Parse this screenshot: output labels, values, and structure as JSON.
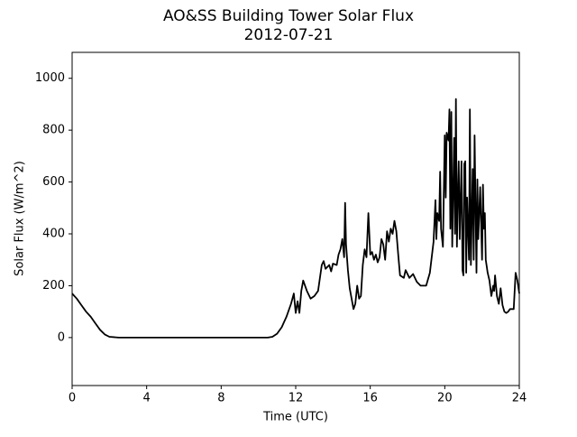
{
  "chart_data": {
    "type": "line",
    "title": "AO&SS Building Tower Solar Flux",
    "subtitle": "2012-07-21",
    "x_label": "Time (UTC)",
    "y_label": "Solar Flux (W/m^2)",
    "xlim": [
      0,
      24
    ],
    "ylim": [
      -185,
      1100
    ],
    "xticks": [
      0,
      4,
      8,
      12,
      16,
      20,
      24
    ],
    "yticks": [
      0,
      200,
      400,
      600,
      800,
      1000
    ],
    "grid": false,
    "series": [
      {
        "color": "#000000",
        "x": [
          0,
          0.25,
          0.5,
          0.75,
          1,
          1.25,
          1.5,
          1.75,
          2,
          2.5,
          3,
          4,
          5,
          6,
          7,
          8,
          9,
          10,
          10.5,
          10.75,
          11,
          11.25,
          11.5,
          11.75,
          11.9,
          12,
          12.1,
          12.2,
          12.3,
          12.4,
          12.6,
          12.8,
          13,
          13.2,
          13.4,
          13.5,
          13.6,
          13.8,
          13.9,
          14,
          14.2,
          14.3,
          14.4,
          14.5,
          14.6,
          14.65,
          14.7,
          14.8,
          14.9,
          15,
          15.1,
          15.2,
          15.3,
          15.4,
          15.5,
          15.6,
          15.7,
          15.8,
          15.9,
          16,
          16.1,
          16.2,
          16.3,
          16.4,
          16.5,
          16.6,
          16.7,
          16.8,
          16.9,
          17,
          17.1,
          17.2,
          17.3,
          17.4,
          17.5,
          17.6,
          17.8,
          17.9,
          18.1,
          18.3,
          18.5,
          18.7,
          19,
          19.2,
          19.4,
          19.5,
          19.55,
          19.6,
          19.7,
          19.75,
          19.8,
          19.9,
          20,
          20.05,
          20.1,
          20.2,
          20.25,
          20.3,
          20.35,
          20.4,
          20.5,
          20.55,
          20.6,
          20.65,
          20.7,
          20.75,
          20.8,
          20.9,
          20.95,
          21,
          21.05,
          21.1,
          21.15,
          21.2,
          21.3,
          21.35,
          21.4,
          21.5,
          21.55,
          21.6,
          21.7,
          21.75,
          21.8,
          21.9,
          22,
          22.05,
          22.1,
          22.15,
          22.2,
          22.3,
          22.4,
          22.5,
          22.6,
          22.65,
          22.7,
          22.8,
          22.9,
          23,
          23.1,
          23.2,
          23.3,
          23.4,
          23.5,
          23.7,
          23.8,
          23.9,
          24
        ],
        "values": [
          170,
          150,
          125,
          100,
          80,
          55,
          30,
          12,
          3,
          0,
          0,
          0,
          0,
          0,
          0,
          0,
          0,
          0,
          0,
          3,
          15,
          40,
          80,
          130,
          170,
          95,
          140,
          95,
          180,
          220,
          180,
          150,
          160,
          180,
          280,
          295,
          265,
          280,
          255,
          285,
          280,
          320,
          340,
          380,
          310,
          520,
          360,
          260,
          190,
          150,
          110,
          130,
          200,
          150,
          160,
          280,
          340,
          310,
          480,
          320,
          330,
          300,
          320,
          290,
          310,
          380,
          360,
          300,
          410,
          370,
          420,
          400,
          450,
          410,
          320,
          240,
          230,
          260,
          230,
          245,
          215,
          200,
          200,
          250,
          370,
          530,
          380,
          480,
          450,
          640,
          420,
          350,
          780,
          540,
          790,
          760,
          880,
          420,
          870,
          350,
          770,
          400,
          920,
          350,
          540,
          680,
          380,
          680,
          260,
          240,
          670,
          680,
          250,
          540,
          300,
          880,
          280,
          650,
          300,
          780,
          250,
          610,
          380,
          580,
          300,
          590,
          420,
          480,
          300,
          250,
          220,
          160,
          200,
          180,
          240,
          160,
          130,
          190,
          125,
          100,
          95,
          100,
          110,
          110,
          250,
          220,
          170
        ]
      }
    ]
  }
}
